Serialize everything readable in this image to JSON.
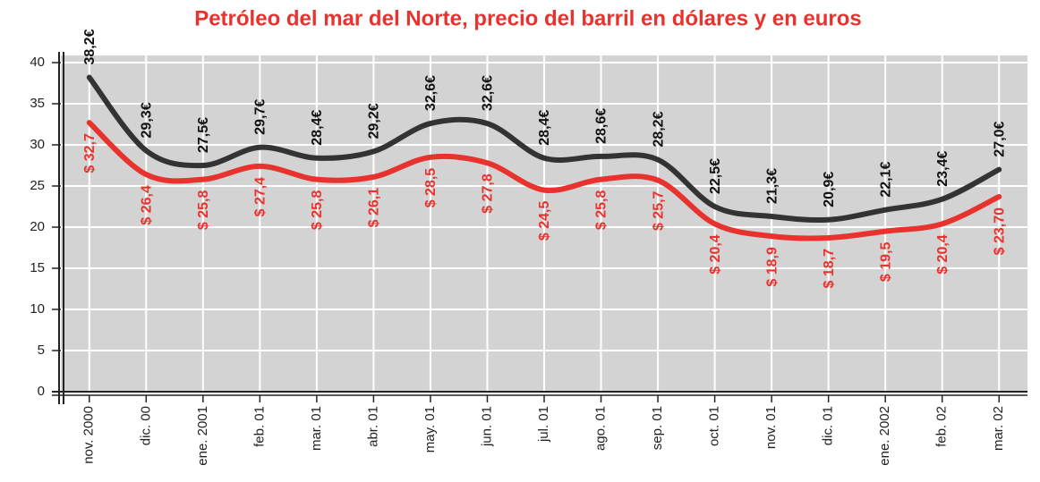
{
  "chart_data": {
    "type": "line",
    "title": "Petróleo del mar del Norte, precio del barril en dólares y en euros",
    "categories": [
      "nov. 2000",
      "dic. 00",
      "ene. 2001",
      "feb. 01",
      "mar. 01",
      "abr. 01",
      "may. 01",
      "jun. 01",
      "jul. 01",
      "ago. 01",
      "sep. 01",
      "oct. 01",
      "nov. 01",
      "dic. 01",
      "ene. 2002",
      "feb. 02",
      "mar. 02"
    ],
    "series": [
      {
        "color": "#333333",
        "values": [
          38.2,
          29.3,
          27.5,
          29.7,
          28.4,
          29.2,
          32.6,
          32.6,
          28.4,
          28.6,
          28.2,
          22.5,
          21.3,
          20.9,
          22.1,
          23.4,
          27.0
        ],
        "value_labels": [
          "38,2€",
          "29,3€",
          "27,5€",
          "29,7€",
          "28,4€",
          "29,2€",
          "32,6€",
          "32,6€",
          "28,4€",
          "28,6€",
          "28,2€",
          "22,5€",
          "21,3€",
          "20,9€",
          "22,1€",
          "23,4€",
          "27,0€"
        ]
      },
      {
        "color": "#e8322d",
        "values": [
          32.7,
          26.4,
          25.8,
          27.4,
          25.8,
          26.1,
          28.5,
          27.8,
          24.5,
          25.8,
          25.7,
          20.4,
          18.9,
          18.7,
          19.5,
          20.4,
          23.7
        ],
        "value_labels": [
          "$ 32,7",
          "$ 26,4",
          "$ 25,8",
          "$ 27,4",
          "$ 25,8",
          "$ 26,1",
          "$ 28,5",
          "$ 27,8",
          "$ 24,5",
          "$ 25,8",
          "$ 25,7",
          "$ 20,4",
          "$ 18,9",
          "$ 18,7",
          "$ 19,5",
          "$ 20,4",
          "$ 23,70"
        ]
      }
    ],
    "ylim": [
      0,
      40
    ],
    "yticks": [
      0,
      5,
      10,
      15,
      20,
      25,
      30,
      35,
      40
    ],
    "grid": true
  }
}
